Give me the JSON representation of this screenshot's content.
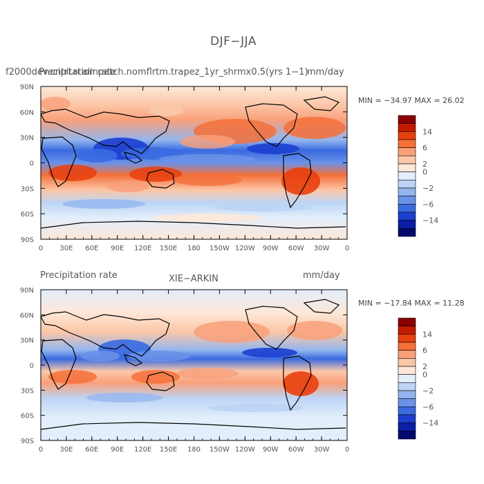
{
  "figure": {
    "title": "DJF−JJA"
  },
  "panels": [
    {
      "id": "top",
      "left_title": "f2000dev.cntrl.rcalinpatch.nomflrtm.trapez_1yr_shrmx0.5(yrs 1−1)",
      "overlap_title": "Precipitation rate",
      "units": "mm/day",
      "center_title": "",
      "min_value": "−34.97",
      "max_value": "26.02",
      "min_label": "MIN = ",
      "max_label": "MAX = "
    },
    {
      "id": "bottom",
      "left_title": "Precipitation rate",
      "center_title": "XIE−ARKIN",
      "units": "mm/day",
      "min_value": "−17.84",
      "max_value": "11.28",
      "min_label": "MIN = ",
      "max_label": "MAX = "
    }
  ],
  "axes": {
    "lon_ticks": [
      "0",
      "30E",
      "60E",
      "90E",
      "120E",
      "150E",
      "180",
      "150W",
      "120W",
      "90W",
      "60W",
      "30W",
      "0"
    ],
    "lat_ticks": [
      "90N",
      "60N",
      "30N",
      "0",
      "30S",
      "60S",
      "90S"
    ]
  },
  "colorbar": {
    "labels": [
      "14",
      "6",
      "2",
      "0",
      "−2",
      "−6",
      "−14"
    ],
    "colors": [
      "#8b0000",
      "#c41a00",
      "#e8400e",
      "#f5703a",
      "#f9a07a",
      "#fbc7a8",
      "#fde8d8",
      "#e2eefb",
      "#bcd4f5",
      "#93b6ef",
      "#6a92e8",
      "#3b6ae0",
      "#1c3fd0",
      "#0a1ea8",
      "#020a6e"
    ]
  },
  "chart_data": {
    "type": "heatmap",
    "title": "DJF−JJA",
    "variable": "Precipitation rate",
    "units": "mm/day",
    "x_ticks": [
      "0",
      "30E",
      "60E",
      "90E",
      "120E",
      "150E",
      "180",
      "150W",
      "120W",
      "90W",
      "60W",
      "30W",
      "0"
    ],
    "y_ticks": [
      "90N",
      "60N",
      "30N",
      "0",
      "30S",
      "60S",
      "90S"
    ],
    "colorbar_labels": [
      "14",
      "6",
      "2",
      "0",
      "−2",
      "−6",
      "−14"
    ],
    "panels": [
      {
        "name": "f2000dev.cntrl.rcalinpatch.nomflrtm.trapez_1yr_shrmx0.5(yrs 1−1)",
        "min": -34.97,
        "max": 26.02
      },
      {
        "name": "XIE−ARKIN",
        "min": -17.84,
        "max": 11.28
      }
    ]
  }
}
